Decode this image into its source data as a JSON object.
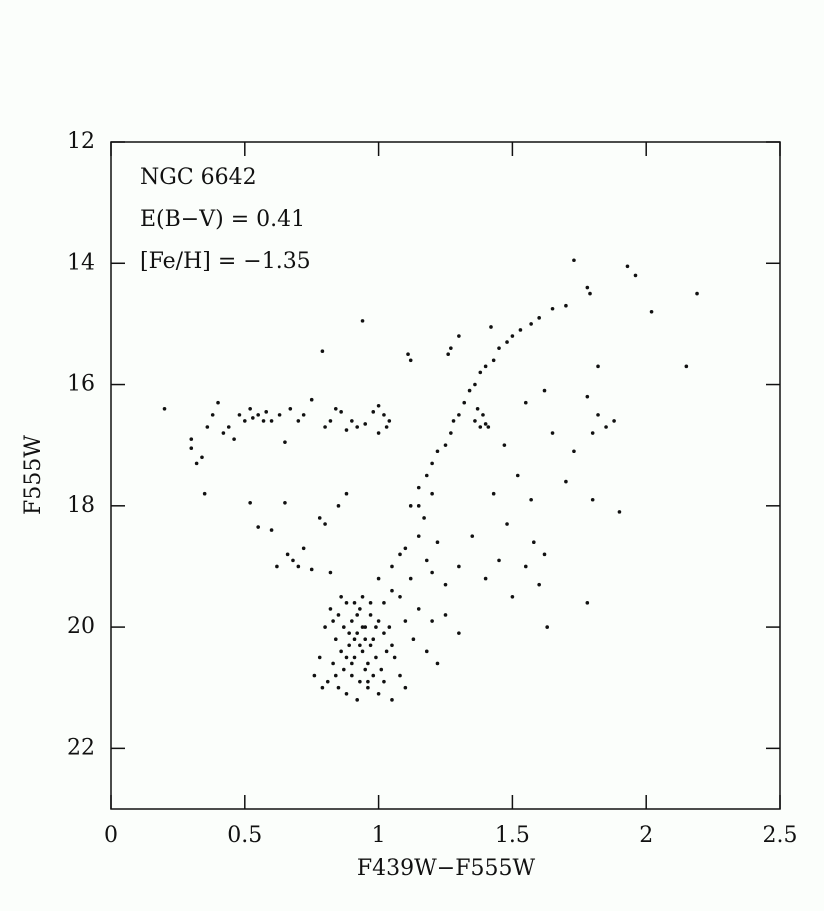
{
  "chart_data": {
    "type": "scatter",
    "annotations": [
      "NGC 6642",
      "E(B−V) = 0.41",
      "[Fe/H] = −1.35"
    ],
    "x_label": "F439W−F555W",
    "y_label": "F555W",
    "xlim": [
      0,
      2.5
    ],
    "xticks": [
      0,
      0.5,
      1,
      1.5,
      2,
      2.5
    ],
    "ylim": [
      12,
      23
    ],
    "yticks": [
      12,
      14,
      16,
      18,
      20,
      22
    ],
    "y_inverted": true,
    "color": "#111111",
    "x": [
      0.2,
      0.3,
      0.3,
      0.32,
      0.34,
      0.35,
      0.36,
      0.38,
      0.4,
      0.42,
      0.44,
      0.46,
      0.48,
      0.5,
      0.52,
      0.53,
      0.55,
      0.57,
      0.58,
      0.6,
      0.63,
      0.65,
      0.67,
      0.7,
      0.72,
      0.75,
      0.8,
      0.82,
      0.84,
      0.86,
      0.88,
      0.9,
      0.92,
      0.95,
      0.98,
      1.0,
      1.0,
      1.02,
      1.03,
      1.04,
      1.12,
      1.15,
      1.18,
      1.2,
      1.22,
      1.25,
      1.27,
      1.28,
      1.3,
      1.32,
      1.34,
      1.36,
      1.38,
      1.4,
      1.43,
      1.45,
      1.48,
      1.5,
      1.53,
      1.57,
      1.6,
      1.65,
      1.7,
      1.73,
      1.78,
      1.79,
      1.93,
      1.96,
      2.02,
      2.19,
      2.15,
      1.27,
      1.26,
      1.3,
      1.42,
      1.11,
      1.12,
      0.94,
      0.79,
      1.36,
      1.38,
      1.4,
      1.37,
      1.39,
      1.41,
      1.55,
      1.62,
      1.65,
      1.7,
      1.73,
      1.8,
      1.8,
      1.82,
      1.85,
      1.88,
      1.82,
      1.78,
      1.9,
      1.78,
      1.63,
      1.6,
      1.55,
      1.5,
      1.45,
      1.48,
      1.52,
      1.58,
      1.62,
      1.43,
      1.47,
      1.35,
      1.4,
      1.57,
      0.52,
      0.55,
      0.6,
      0.62,
      0.66,
      0.68,
      0.7,
      0.72,
      0.75,
      0.78,
      0.8,
      0.65,
      0.85,
      0.88,
      0.82,
      1.05,
      1.08,
      1.1,
      1.12,
      1.15,
      1.18,
      1.2,
      1.22,
      1.25,
      1.05,
      1.0,
      1.02,
      1.08,
      1.15,
      1.2,
      1.25,
      1.3,
      1.3,
      1.17,
      1.15,
      1.2,
      1.1,
      1.13,
      1.18,
      1.22,
      1.05,
      0.82,
      0.85,
      0.87,
      0.88,
      0.9,
      0.92,
      0.93,
      0.95,
      0.97,
      0.98,
      1.0,
      1.02,
      0.84,
      0.86,
      0.89,
      0.91,
      0.94,
      0.96,
      0.99,
      1.01,
      1.03,
      0.8,
      0.83,
      0.87,
      0.9,
      0.93,
      0.96,
      0.85,
      0.88,
      0.92,
      0.78,
      0.76,
      0.81,
      0.94,
      0.91,
      0.97,
      1.04,
      1.06,
      1.08,
      1.1,
      0.89,
      0.92,
      0.95,
      0.98,
      1.0,
      0.86,
      0.84,
      0.79,
      1.02,
      0.95,
      0.88,
      0.91,
      0.94,
      0.97,
      0.99,
      0.83,
      0.9,
      0.93,
      0.96,
      1.05
    ],
    "values": [
      16.4,
      16.9,
      17.05,
      17.3,
      17.2,
      17.8,
      16.7,
      16.5,
      16.3,
      16.8,
      16.7,
      16.9,
      16.5,
      16.6,
      16.4,
      16.55,
      16.5,
      16.6,
      16.45,
      16.6,
      16.5,
      16.95,
      16.4,
      16.6,
      16.5,
      16.25,
      16.7,
      16.6,
      16.4,
      16.45,
      16.75,
      16.6,
      16.7,
      16.65,
      16.45,
      16.35,
      16.8,
      16.5,
      16.7,
      16.6,
      18.0,
      17.7,
      17.5,
      17.3,
      17.1,
      17.0,
      16.8,
      16.6,
      16.5,
      16.3,
      16.1,
      16.0,
      15.8,
      15.7,
      15.6,
      15.4,
      15.3,
      15.2,
      15.1,
      15.0,
      14.9,
      14.75,
      14.7,
      13.95,
      14.4,
      14.5,
      14.05,
      14.2,
      14.8,
      14.5,
      15.7,
      15.4,
      15.5,
      15.2,
      15.05,
      15.5,
      15.6,
      14.95,
      15.45,
      16.6,
      16.7,
      16.65,
      16.4,
      16.5,
      16.7,
      16.3,
      16.1,
      16.8,
      17.6,
      17.1,
      17.9,
      16.8,
      16.5,
      16.7,
      16.6,
      15.7,
      16.2,
      18.1,
      19.6,
      20.0,
      19.3,
      19.0,
      19.5,
      18.9,
      18.3,
      17.5,
      18.6,
      18.8,
      17.8,
      17.0,
      18.5,
      19.2,
      17.9,
      17.95,
      18.35,
      18.4,
      19.0,
      18.8,
      18.9,
      19.0,
      18.7,
      19.05,
      18.2,
      18.3,
      17.95,
      18.0,
      17.8,
      19.1,
      19.0,
      18.8,
      18.7,
      19.2,
      18.5,
      18.9,
      19.1,
      18.6,
      19.3,
      19.4,
      19.2,
      19.6,
      19.5,
      19.7,
      19.9,
      19.8,
      20.1,
      19.0,
      18.2,
      18.0,
      17.8,
      19.9,
      20.2,
      20.4,
      20.6,
      20.3,
      19.7,
      19.8,
      20.0,
      19.6,
      19.9,
      20.1,
      19.7,
      20.0,
      19.8,
      20.2,
      19.9,
      20.1,
      20.2,
      20.4,
      20.3,
      20.5,
      20.4,
      20.6,
      20.5,
      20.7,
      20.4,
      20.0,
      20.6,
      20.7,
      20.8,
      20.9,
      21.0,
      21.0,
      21.1,
      21.2,
      20.5,
      20.8,
      20.9,
      19.5,
      19.6,
      20.3,
      20.0,
      20.5,
      20.8,
      21.0,
      20.1,
      19.8,
      20.2,
      20.8,
      21.1,
      19.5,
      20.8,
      21.0,
      20.9,
      20.7,
      20.5,
      20.2,
      20.0,
      19.6,
      20.0,
      19.9,
      20.6,
      20.3,
      20.9,
      21.2
    ]
  }
}
